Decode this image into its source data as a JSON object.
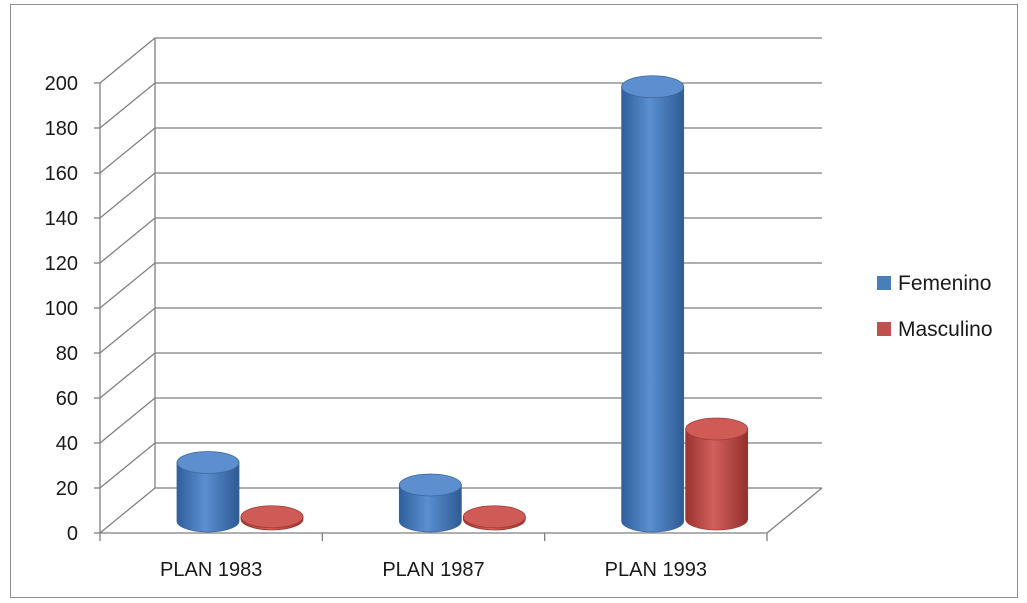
{
  "chart_data": {
    "type": "bar",
    "style": "3d-cylinder",
    "categories": [
      "PLAN 1983",
      "PLAN 1987",
      "PLAN 1993"
    ],
    "series": [
      {
        "name": "Femenino",
        "values": [
          26,
          16,
          193
        ],
        "color": "#4a7ebb"
      },
      {
        "name": "Masculino",
        "values": [
          1,
          1,
          40
        ],
        "color": "#c0504d"
      }
    ],
    "yticks": [
      "0",
      "20",
      "40",
      "60",
      "80",
      "100",
      "120",
      "140",
      "160",
      "180",
      "200"
    ],
    "ylim": [
      0,
      200
    ],
    "grid": true,
    "legend": "right"
  }
}
